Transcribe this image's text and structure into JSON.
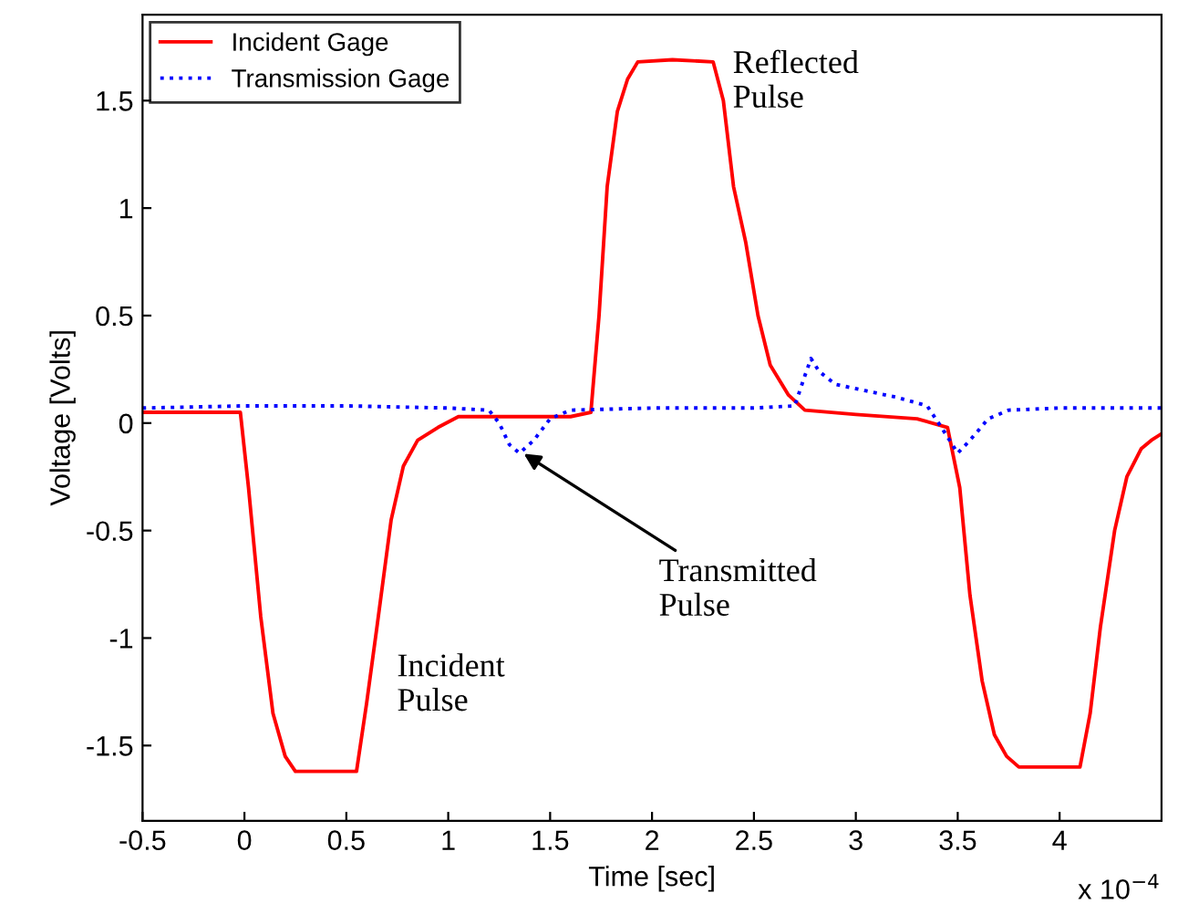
{
  "chart_data": {
    "type": "line",
    "xlabel": "Time [sec]",
    "ylabel": "Voltage [Volts]",
    "xlim": [
      -0.5,
      4.5
    ],
    "ylim": [
      -1.85,
      1.9
    ],
    "xticks": [
      -0.5,
      0,
      0.5,
      1,
      1.5,
      2,
      2.5,
      3,
      3.5,
      4
    ],
    "yticks": [
      -1.5,
      -1,
      -0.5,
      0,
      0.5,
      1,
      1.5
    ],
    "grid": false,
    "legend": "top left",
    "marker": "none",
    "annotations": [
      "Incident\nPulse",
      {
        "text": "Transmitted\nPulse",
        "x": 1.35,
        "y": -0.13
      },
      "Reflected\nPulse",
      "x 10$^{−4}$"
    ],
    "series": [
      {
        "name": "Incident Gage",
        "color": "#ff0000",
        "line_style": "solid",
        "x": [
          -0.5,
          -0.02,
          0.02,
          0.08,
          0.14,
          0.2,
          0.25,
          0.35,
          0.45,
          0.55,
          0.6,
          0.65,
          0.72,
          0.78,
          0.85,
          0.95,
          1.05,
          1.3,
          1.6,
          1.7,
          1.74,
          1.78,
          1.83,
          1.88,
          1.93,
          2.1,
          2.3,
          2.35,
          2.4,
          2.46,
          2.52,
          2.58,
          2.67,
          2.75,
          3.0,
          3.3,
          3.45,
          3.51,
          3.56,
          3.62,
          3.68,
          3.74,
          3.8,
          3.95,
          4.1,
          4.15,
          4.2,
          4.27,
          4.33,
          4.4,
          4.45,
          4.5
        ],
        "values": [
          0.05,
          0.05,
          -0.3,
          -0.9,
          -1.35,
          -1.55,
          -1.62,
          -1.62,
          -1.62,
          -1.62,
          -1.3,
          -0.95,
          -0.45,
          -0.2,
          -0.08,
          -0.02,
          0.03,
          0.03,
          0.03,
          0.05,
          0.5,
          1.1,
          1.45,
          1.6,
          1.68,
          1.69,
          1.68,
          1.5,
          1.1,
          0.84,
          0.5,
          0.27,
          0.13,
          0.06,
          0.04,
          0.02,
          -0.02,
          -0.3,
          -0.8,
          -1.2,
          -1.45,
          -1.55,
          -1.6,
          -1.6,
          -1.6,
          -1.35,
          -0.95,
          -0.5,
          -0.25,
          -0.12,
          -0.08,
          -0.05
        ]
      },
      {
        "name": "Transmission Gage",
        "color": "#0000ff",
        "line_style": "dotted",
        "x": [
          -0.5,
          0.0,
          0.5,
          1.0,
          1.2,
          1.25,
          1.3,
          1.35,
          1.42,
          1.5,
          1.6,
          2.0,
          2.5,
          2.7,
          2.75,
          2.78,
          2.82,
          2.9,
          3.05,
          3.2,
          3.35,
          3.42,
          3.5,
          3.56,
          3.65,
          3.75,
          4.0,
          4.5
        ],
        "values": [
          0.07,
          0.08,
          0.08,
          0.07,
          0.06,
          0.0,
          -0.1,
          -0.14,
          -0.08,
          0.02,
          0.06,
          0.07,
          0.07,
          0.08,
          0.22,
          0.3,
          0.24,
          0.18,
          0.15,
          0.12,
          0.08,
          -0.02,
          -0.14,
          -0.08,
          0.02,
          0.06,
          0.07,
          0.07
        ]
      }
    ]
  }
}
